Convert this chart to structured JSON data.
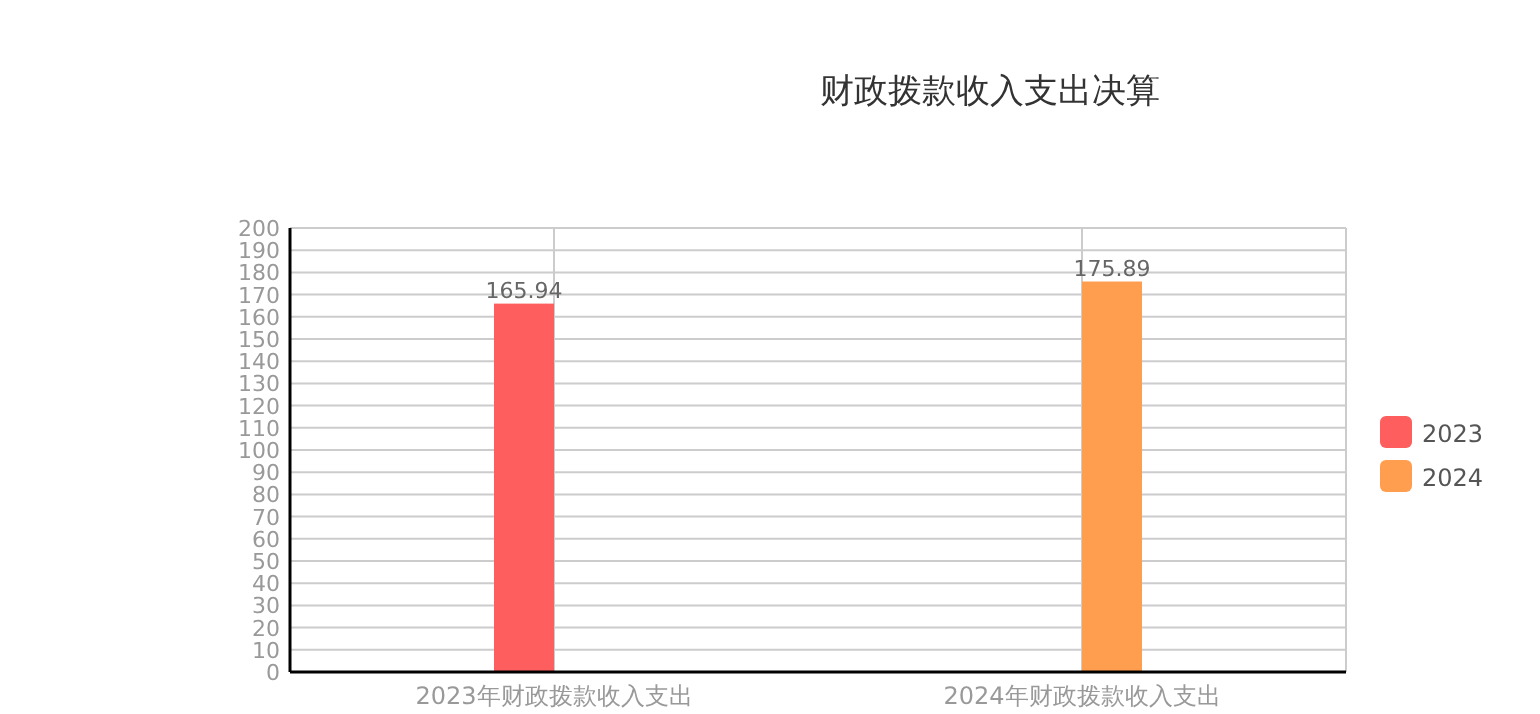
{
  "chart_data": {
    "type": "bar",
    "title": "财政拨款收入支出决算",
    "categories": [
      "2023年财政拨款收入支出",
      "2024年财政拨款收入支出"
    ],
    "series": [
      {
        "name": "2023",
        "color": "#ff5e5e",
        "values": [
          165.94,
          null
        ]
      },
      {
        "name": "2024",
        "color": "#ff9e4f",
        "values": [
          null,
          175.89
        ]
      }
    ],
    "ylim": [
      0,
      200
    ],
    "yticks": [
      0,
      10,
      20,
      30,
      40,
      50,
      60,
      70,
      80,
      90,
      100,
      110,
      120,
      130,
      140,
      150,
      160,
      170,
      180,
      190,
      200
    ],
    "grid": true,
    "legend": "right",
    "data_labels": true
  }
}
